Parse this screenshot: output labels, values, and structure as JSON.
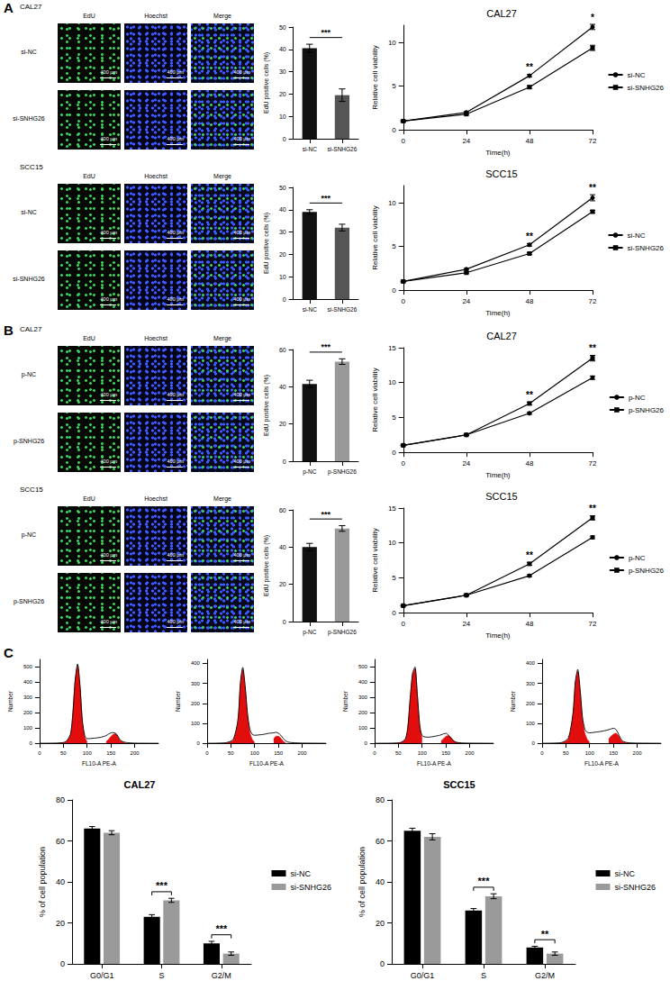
{
  "panel_labels": [
    "A",
    "B",
    "C"
  ],
  "image_panels": [
    {
      "title": "CAL27",
      "columns": [
        "EdU",
        "Hoechst",
        "Merge"
      ],
      "rows": [
        "si-NC",
        "si-SNHG26"
      ],
      "scale_bar": "400 μm"
    },
    {
      "title": "SCC15",
      "columns": [
        "EdU",
        "Hoechst",
        "Merge"
      ],
      "rows": [
        "si-NC",
        "si-SNHG26"
      ],
      "scale_bar": "400 μm"
    },
    {
      "title": "CAL27",
      "columns": [
        "EdU",
        "Hoechst",
        "Merge"
      ],
      "rows": [
        "p-NC",
        "p-SNHG26"
      ],
      "scale_bar": "400 μm"
    },
    {
      "title": "SCC15",
      "columns": [
        "EdU",
        "Hoechst",
        "Merge"
      ],
      "rows": [
        "p-NC",
        "p-SNHG26"
      ],
      "scale_bar": "400 μm"
    }
  ],
  "chart_data": [
    {
      "type": "bar",
      "categories": [
        "si-NC",
        "si-SNHG26"
      ],
      "values": [
        40.5,
        19.5
      ],
      "errors": [
        1.8,
        2.8
      ],
      "colors": [
        "#111111",
        "#555555"
      ],
      "ylabel": "EdU positive cells (%)",
      "ylim": [
        0,
        50
      ],
      "yticks": [
        0,
        10,
        20,
        30,
        40,
        50
      ],
      "grid": false,
      "significance": [
        {
          "between": [
            "si-NC",
            "si-SNHG26"
          ],
          "label": "***"
        }
      ]
    },
    {
      "type": "line",
      "title": "CAL27",
      "xlabel": "Time(h)",
      "ylabel": "Relative cell viability",
      "x": [
        0,
        24,
        48,
        72
      ],
      "xlim": [
        0,
        72
      ],
      "xticks": [
        0,
        24,
        48,
        72
      ],
      "ylim": [
        0,
        12
      ],
      "yticks": [
        0,
        5,
        10
      ],
      "grid": false,
      "legend": "right",
      "series": [
        {
          "name": "si-NC",
          "color": "#000000",
          "marker": "circle",
          "values": [
            1,
            2.0,
            6.2,
            11.8
          ],
          "errors": [
            0.05,
            0.1,
            0.15,
            0.3
          ]
        },
        {
          "name": "si-SNHG26",
          "color": "#000000",
          "marker": "square",
          "values": [
            1,
            1.8,
            4.9,
            9.4
          ],
          "errors": [
            0.05,
            0.1,
            0.15,
            0.3
          ]
        }
      ],
      "significance": [
        {
          "x": 48,
          "label": "**"
        },
        {
          "x": 72,
          "label": "*"
        }
      ]
    },
    {
      "type": "bar",
      "categories": [
        "si-NC",
        "si-SNHG26"
      ],
      "values": [
        39,
        32
      ],
      "errors": [
        1.0,
        1.5
      ],
      "colors": [
        "#111111",
        "#555555"
      ],
      "ylabel": "EdU positive cells (%)",
      "ylim": [
        0,
        50
      ],
      "yticks": [
        0,
        10,
        20,
        30,
        40,
        50
      ],
      "grid": false,
      "significance": [
        {
          "between": [
            "si-NC",
            "si-SNHG26"
          ],
          "label": "***"
        }
      ]
    },
    {
      "type": "line",
      "title": "SCC15",
      "xlabel": "Time(h)",
      "ylabel": "Relative cell viability",
      "x": [
        0,
        24,
        48,
        72
      ],
      "xlim": [
        0,
        72
      ],
      "xticks": [
        0,
        24,
        48,
        72
      ],
      "ylim": [
        0,
        12
      ],
      "yticks": [
        0,
        5,
        10
      ],
      "grid": false,
      "legend": "right",
      "series": [
        {
          "name": "si-NC",
          "color": "#000000",
          "marker": "circle",
          "values": [
            1,
            2.4,
            5.2,
            10.6
          ],
          "errors": [
            0.05,
            0.1,
            0.15,
            0.35
          ]
        },
        {
          "name": "si-SNHG26",
          "color": "#000000",
          "marker": "square",
          "values": [
            1,
            2.0,
            4.2,
            9.0
          ],
          "errors": [
            0.05,
            0.1,
            0.1,
            0.15
          ]
        }
      ],
      "significance": [
        {
          "x": 48,
          "label": "**"
        },
        {
          "x": 72,
          "label": "**"
        }
      ]
    },
    {
      "type": "bar",
      "categories": [
        "p-NC",
        "p-SNHG26"
      ],
      "values": [
        41.5,
        53.5
      ],
      "errors": [
        2.0,
        1.5
      ],
      "colors": [
        "#111111",
        "#999999"
      ],
      "ylabel": "EdU positive cells (%)",
      "ylim": [
        0,
        60
      ],
      "yticks": [
        0,
        20,
        40,
        60
      ],
      "grid": false,
      "significance": [
        {
          "between": [
            "p-NC",
            "p-SNHG26"
          ],
          "label": "***"
        }
      ]
    },
    {
      "type": "line",
      "title": "CAL27",
      "xlabel": "Time(h)",
      "ylabel": "Relative cell viability",
      "x": [
        0,
        24,
        48,
        72
      ],
      "xlim": [
        0,
        72
      ],
      "xticks": [
        0,
        24,
        48,
        72
      ],
      "ylim": [
        0,
        15
      ],
      "yticks": [
        0,
        5,
        10,
        15
      ],
      "grid": false,
      "legend": "right",
      "series": [
        {
          "name": "p-NC",
          "color": "#000000",
          "marker": "circle",
          "values": [
            1,
            2.5,
            5.6,
            10.7
          ],
          "errors": [
            0.05,
            0.1,
            0.15,
            0.25
          ]
        },
        {
          "name": "p-SNHG26",
          "color": "#000000",
          "marker": "square",
          "values": [
            1,
            2.5,
            7.0,
            13.5
          ],
          "errors": [
            0.05,
            0.1,
            0.2,
            0.4
          ]
        }
      ],
      "significance": [
        {
          "x": 48,
          "label": "**"
        },
        {
          "x": 72,
          "label": "**"
        }
      ]
    },
    {
      "type": "bar",
      "categories": [
        "p-NC",
        "p-SNHG26"
      ],
      "values": [
        40,
        50
      ],
      "errors": [
        2.0,
        1.5
      ],
      "colors": [
        "#111111",
        "#999999"
      ],
      "ylabel": "EdU positive cells (%)",
      "ylim": [
        0,
        60
      ],
      "yticks": [
        0,
        20,
        40,
        60
      ],
      "grid": false,
      "significance": [
        {
          "between": [
            "p-NC",
            "p-SNHG26"
          ],
          "label": "***"
        }
      ]
    },
    {
      "type": "line",
      "title": "SCC15",
      "xlabel": "Time(h)",
      "ylabel": "Relative cell viability",
      "x": [
        0,
        24,
        48,
        72
      ],
      "xlim": [
        0,
        72
      ],
      "xticks": [
        0,
        24,
        48,
        72
      ],
      "ylim": [
        0,
        15
      ],
      "yticks": [
        0,
        5,
        10,
        15
      ],
      "grid": false,
      "legend": "right",
      "series": [
        {
          "name": "p-NC",
          "color": "#000000",
          "marker": "circle",
          "values": [
            1,
            2.5,
            5.3,
            10.8
          ],
          "errors": [
            0.05,
            0.1,
            0.15,
            0.2
          ]
        },
        {
          "name": "p-SNHG26",
          "color": "#000000",
          "marker": "square",
          "values": [
            1,
            2.5,
            7.0,
            13.6
          ],
          "errors": [
            0.05,
            0.1,
            0.2,
            0.3
          ]
        }
      ],
      "significance": [
        {
          "x": 48,
          "label": "**"
        },
        {
          "x": 72,
          "label": "**"
        }
      ]
    },
    {
      "type": "histogram",
      "xlabel": "FL10-A PE-A",
      "ylabel": "Number",
      "x": [
        0,
        40,
        55,
        65,
        70,
        75,
        80,
        85,
        90,
        95,
        100,
        110,
        120,
        130,
        140,
        145,
        150,
        155,
        160,
        165,
        170,
        180,
        200,
        250
      ],
      "xlim": [
        0,
        250
      ],
      "xticks": [
        0,
        50,
        100,
        150,
        200
      ],
      "ylim": [
        0,
        550
      ],
      "yticks": [
        0,
        100,
        200,
        300,
        400,
        500
      ],
      "grid": false,
      "series": [
        {
          "type": "area",
          "color": "#e00000",
          "values": [
            null,
            0,
            8,
            55,
            190,
            410,
            510,
            370,
            140,
            40,
            10,
            null,
            null,
            null,
            10,
            25,
            45,
            58,
            62,
            40,
            15,
            2,
            null,
            null
          ]
        },
        {
          "type": "line",
          "color": "#000000",
          "values": [
            0,
            2,
            10,
            60,
            200,
            420,
            520,
            380,
            150,
            50,
            30,
            32,
            35,
            40,
            50,
            60,
            68,
            70,
            65,
            45,
            20,
            6,
            1,
            0
          ]
        }
      ]
    },
    {
      "type": "histogram",
      "xlabel": "FL10-A PE-A",
      "ylabel": "Number",
      "x": [
        0,
        40,
        55,
        65,
        70,
        75,
        80,
        85,
        90,
        95,
        100,
        110,
        120,
        130,
        140,
        145,
        150,
        155,
        160,
        165,
        170,
        180,
        200,
        250
      ],
      "xlim": [
        0,
        250
      ],
      "xticks": [
        0,
        50,
        100,
        150,
        200
      ],
      "ylim": [
        0,
        420
      ],
      "yticks": [
        0,
        100,
        200,
        300,
        400
      ],
      "grid": false,
      "series": [
        {
          "type": "area",
          "color": "#e00000",
          "values": [
            null,
            0,
            15,
            110,
            290,
            370,
            280,
            140,
            55,
            20,
            5,
            null,
            null,
            null,
            20,
            35,
            35,
            25,
            10,
            3,
            null,
            null,
            null,
            null
          ]
        },
        {
          "type": "line",
          "color": "#000000",
          "values": [
            0,
            3,
            20,
            120,
            300,
            380,
            290,
            150,
            70,
            45,
            40,
            42,
            45,
            50,
            52,
            55,
            50,
            40,
            25,
            12,
            6,
            3,
            1,
            0
          ]
        }
      ]
    },
    {
      "type": "histogram",
      "xlabel": "FL10-A PE-A",
      "ylabel": "Number",
      "x": [
        0,
        40,
        55,
        65,
        70,
        75,
        80,
        85,
        90,
        95,
        100,
        110,
        120,
        130,
        140,
        145,
        150,
        155,
        160,
        165,
        170,
        180,
        200,
        250
      ],
      "xlim": [
        0,
        250
      ],
      "xticks": [
        0,
        50,
        100,
        150,
        200
      ],
      "ylim": [
        0,
        550
      ],
      "yticks": [
        0,
        100,
        200,
        300,
        400,
        500
      ],
      "grid": false,
      "series": [
        {
          "type": "area",
          "color": "#e00000",
          "values": [
            null,
            0,
            4,
            25,
            100,
            290,
            450,
            490,
            310,
            110,
            30,
            null,
            null,
            null,
            15,
            30,
            45,
            50,
            40,
            22,
            8,
            1,
            null,
            null
          ]
        },
        {
          "type": "line",
          "color": "#000000",
          "values": [
            0,
            1,
            5,
            30,
            110,
            300,
            460,
            500,
            320,
            120,
            50,
            40,
            42,
            48,
            55,
            62,
            65,
            55,
            35,
            18,
            8,
            3,
            1,
            0
          ]
        }
      ]
    },
    {
      "type": "histogram",
      "xlabel": "FL10-A PE-A",
      "ylabel": "Number",
      "x": [
        0,
        40,
        55,
        65,
        70,
        75,
        80,
        85,
        90,
        95,
        100,
        110,
        120,
        130,
        140,
        145,
        150,
        155,
        160,
        165,
        170,
        180,
        200,
        250
      ],
      "xlim": [
        0,
        250
      ],
      "xticks": [
        0,
        50,
        100,
        150,
        200
      ],
      "ylim": [
        0,
        420
      ],
      "yticks": [
        0,
        100,
        200,
        300,
        400
      ],
      "grid": false,
      "series": [
        {
          "type": "area",
          "color": "#e00000",
          "values": [
            null,
            0,
            20,
            140,
            300,
            360,
            260,
            120,
            50,
            20,
            5,
            null,
            null,
            null,
            20,
            35,
            45,
            50,
            40,
            20,
            6,
            1,
            null,
            null
          ]
        },
        {
          "type": "line",
          "color": "#000000",
          "values": [
            0,
            3,
            25,
            150,
            310,
            370,
            270,
            130,
            70,
            55,
            52,
            55,
            58,
            62,
            68,
            72,
            75,
            70,
            50,
            25,
            10,
            3,
            1,
            0
          ]
        }
      ]
    },
    {
      "type": "bar",
      "title": "CAL27",
      "ylabel": "% of cell population",
      "categories": [
        "G0/G1",
        "S",
        "G2/M"
      ],
      "ylim": [
        0,
        80
      ],
      "yticks": [
        0,
        20,
        40,
        60,
        80
      ],
      "grid": false,
      "legend": "right",
      "series": [
        {
          "name": "si-NC",
          "color": "#000000",
          "values": [
            66,
            23,
            10
          ],
          "errors": [
            1.0,
            1.0,
            1.0
          ]
        },
        {
          "name": "si-SNHG26",
          "color": "#9a9a9a",
          "values": [
            64,
            31,
            5
          ],
          "errors": [
            1.0,
            1.0,
            0.8
          ]
        }
      ],
      "significance": [
        {
          "category": "S",
          "label": "***"
        },
        {
          "category": "G2/M",
          "label": "***"
        }
      ]
    },
    {
      "type": "bar",
      "title": "SCC15",
      "ylabel": "% of cell population",
      "categories": [
        "G0/G1",
        "S",
        "G2/M"
      ],
      "ylim": [
        0,
        80
      ],
      "yticks": [
        0,
        20,
        40,
        60,
        80
      ],
      "grid": false,
      "legend": "right",
      "series": [
        {
          "name": "si-NC",
          "color": "#000000",
          "values": [
            65,
            26,
            8
          ],
          "errors": [
            1.2,
            1.0,
            0.6
          ]
        },
        {
          "name": "si-SNHG26",
          "color": "#9a9a9a",
          "values": [
            62,
            33,
            5
          ],
          "errors": [
            1.5,
            1.2,
            0.8
          ]
        }
      ],
      "significance": [
        {
          "category": "S",
          "label": "***"
        },
        {
          "category": "G2/M",
          "label": "**"
        }
      ]
    }
  ]
}
